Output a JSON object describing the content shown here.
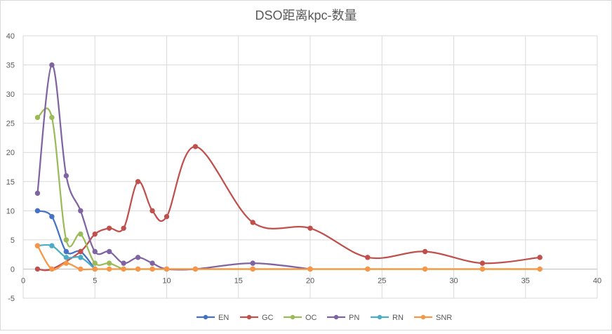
{
  "chart_data": {
    "type": "scatter",
    "title": "DSO距离kpc-数量",
    "xlabel": "",
    "ylabel": "",
    "xlim": [
      0,
      40
    ],
    "ylim": [
      -5,
      40
    ],
    "x_ticks": [
      "0",
      "5",
      "10",
      "15",
      "20",
      "25",
      "30",
      "35",
      "40"
    ],
    "y_ticks": [
      "-5",
      "0",
      "5",
      "10",
      "15",
      "20",
      "25",
      "30",
      "35",
      "40"
    ],
    "grid": "vertical and horizontal",
    "legend_position": "bottom",
    "line_style": "smoothed lines with markers",
    "series": [
      {
        "name": "EN",
        "color": "#4472C4",
        "x": [
          1,
          2,
          3,
          4,
          5
        ],
        "y": [
          10,
          9,
          3,
          3,
          0
        ]
      },
      {
        "name": "GC",
        "color": "#C0504D",
        "x": [
          1,
          2,
          4,
          5,
          6,
          7,
          8,
          9,
          10,
          12,
          16,
          20,
          24,
          28,
          32,
          36
        ],
        "y": [
          0,
          0,
          3,
          6,
          7,
          7,
          15,
          10,
          9,
          21,
          8,
          7,
          2,
          3,
          1,
          2
        ]
      },
      {
        "name": "OC",
        "color": "#9BBB59",
        "x": [
          1,
          2,
          3,
          4,
          5,
          6,
          7,
          8,
          9,
          10,
          12,
          16,
          20,
          24,
          28,
          32,
          36
        ],
        "y": [
          26,
          26,
          5,
          6,
          1,
          1,
          0,
          0,
          0,
          0,
          0,
          0,
          0,
          0,
          0,
          0,
          0
        ]
      },
      {
        "name": "PN",
        "color": "#8064A2",
        "x": [
          1,
          2,
          3,
          4,
          5,
          6,
          7,
          8,
          9,
          10,
          12,
          16,
          20
        ],
        "y": [
          13,
          35,
          16,
          10,
          3,
          3,
          1,
          2,
          1,
          0,
          0,
          1,
          0
        ]
      },
      {
        "name": "RN",
        "color": "#4BACC6",
        "x": [
          1,
          2,
          3,
          4,
          5
        ],
        "y": [
          4,
          4,
          2,
          2,
          0
        ]
      },
      {
        "name": "SNR",
        "color": "#F79646",
        "x": [
          1,
          2,
          3,
          4,
          5,
          6,
          7,
          8,
          9,
          10,
          12,
          16,
          20,
          24,
          28,
          32,
          36
        ],
        "y": [
          4,
          0,
          1,
          0,
          0,
          0,
          0,
          0,
          0,
          0,
          0,
          0,
          0,
          0,
          0,
          0,
          0
        ]
      }
    ]
  }
}
